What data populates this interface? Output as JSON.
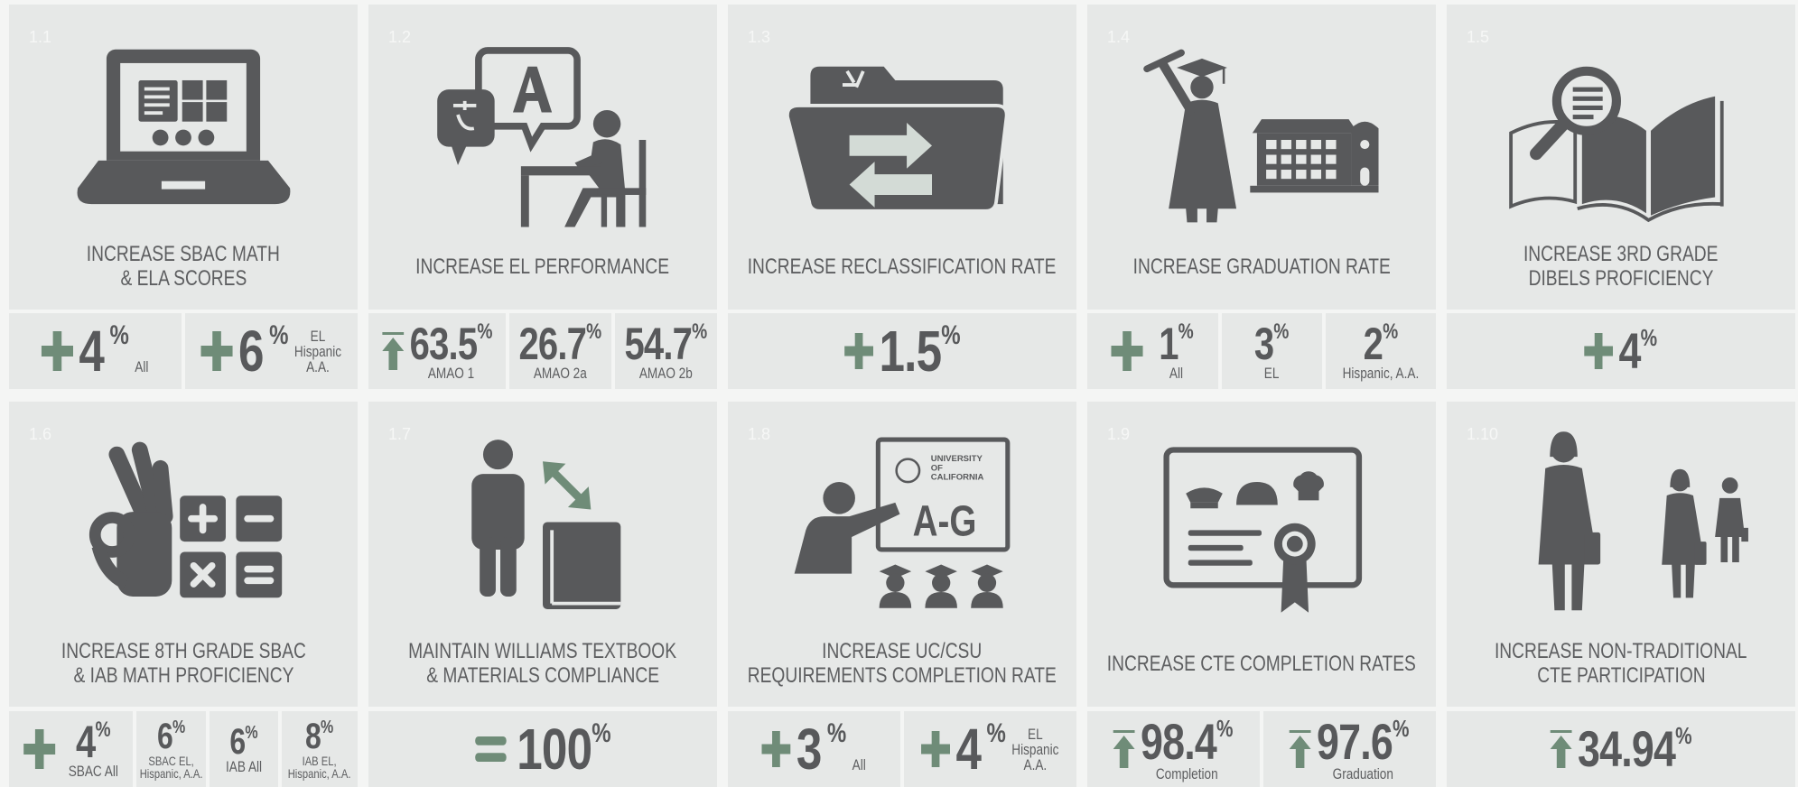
{
  "cards": [
    {
      "number": "1.1",
      "title": [
        "INCREASE SBAC MATH",
        "& ELA SCORES"
      ],
      "metrics": [
        {
          "value": "4",
          "unit": "%",
          "label": "All"
        },
        {
          "value": "6",
          "unit": "%",
          "label": [
            "EL",
            "Hispanic",
            "A.A."
          ]
        }
      ]
    },
    {
      "number": "1.2",
      "title": [
        "INCREASE EL PERFORMANCE"
      ],
      "metrics": [
        {
          "value": "63.5",
          "unit": "%",
          "label": "AMAO 1"
        },
        {
          "value": "26.7",
          "unit": "%",
          "label": "AMAO 2a"
        },
        {
          "value": "54.7",
          "unit": "%",
          "label": "AMAO 2b"
        }
      ]
    },
    {
      "number": "1.3",
      "title": [
        "INCREASE RECLASSIFICATION RATE"
      ],
      "metrics": [
        {
          "value": "1.5",
          "unit": "%"
        }
      ]
    },
    {
      "number": "1.4",
      "title": [
        "INCREASE GRADUATION RATE"
      ],
      "metrics": [
        {
          "value": "1",
          "unit": "%",
          "label": "All"
        },
        {
          "value": "3",
          "unit": "%",
          "label": "EL"
        },
        {
          "value": "2",
          "unit": "%",
          "label": "Hispanic, A.A."
        }
      ]
    },
    {
      "number": "1.5",
      "title": [
        "INCREASE 3RD GRADE",
        "DIBELS PROFICIENCY"
      ],
      "metrics": [
        {
          "value": "4",
          "unit": "%"
        }
      ]
    },
    {
      "number": "1.6",
      "title": [
        "INCREASE 8TH GRADE SBAC",
        "& IAB MATH PROFICIENCY"
      ],
      "metrics": [
        {
          "value": "4",
          "unit": "%",
          "label": "SBAC All"
        },
        {
          "value": "6",
          "unit": "%",
          "label": [
            "SBAC EL,",
            "Hispanic, A.A."
          ]
        },
        {
          "value": "6",
          "unit": "%",
          "label": "IAB All"
        },
        {
          "value": "8",
          "unit": "%",
          "label": [
            "IAB EL,",
            "Hispanic, A.A."
          ]
        }
      ]
    },
    {
      "number": "1.7",
      "title": [
        "MAINTAIN WILLIAMS TEXTBOOK",
        "& MATERIALS COMPLIANCE"
      ],
      "metrics": [
        {
          "value": "100",
          "unit": "%"
        }
      ]
    },
    {
      "number": "1.8",
      "title": [
        "INCREASE UC/CSU",
        "REQUIREMENTS COMPLETION RATE"
      ],
      "icon_text": [
        "UNIVERSITY",
        "OF",
        "CALIFORNIA",
        "A-G"
      ],
      "metrics": [
        {
          "value": "3",
          "unit": "%",
          "label": "All"
        },
        {
          "value": "4",
          "unit": "%",
          "label": [
            "EL",
            "Hispanic",
            "A.A."
          ]
        }
      ]
    },
    {
      "number": "1.9",
      "title": [
        "INCREASE CTE COMPLETION RATES"
      ],
      "metrics": [
        {
          "value": "98.4",
          "unit": "%",
          "label": "Completion"
        },
        {
          "value": "97.6",
          "unit": "%",
          "label": "Graduation"
        }
      ]
    },
    {
      "number": "1.10",
      "title": [
        "INCREASE NON-TRADITIONAL",
        "CTE PARTICIPATION"
      ],
      "metrics": [
        {
          "value": "34.94",
          "unit": "%"
        }
      ]
    }
  ]
}
